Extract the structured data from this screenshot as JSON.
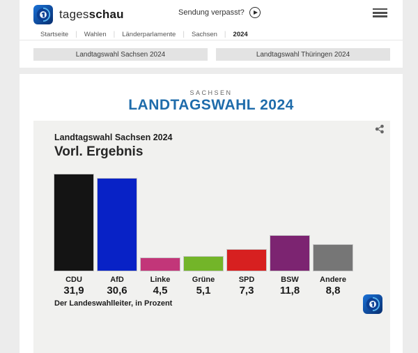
{
  "header": {
    "brand_regular": "tages",
    "brand_bold": "schau",
    "sendung_verpasst": "Sendung verpasst?",
    "breadcrumb": [
      {
        "label": "Startseite",
        "current": false
      },
      {
        "label": "Wahlen",
        "current": false
      },
      {
        "label": "Länderparlamente",
        "current": false
      },
      {
        "label": "Sachsen",
        "current": false
      },
      {
        "label": "2024",
        "current": true
      }
    ]
  },
  "tabs": [
    {
      "label": "Landtagswahl Sachsen 2024"
    },
    {
      "label": "Landtagswahl Thüringen 2024"
    }
  ],
  "main": {
    "kicker": "SACHSEN",
    "title": "LANDTAGSWAHL 2024"
  },
  "chart_data": {
    "type": "bar",
    "title": "Landtagswahl Sachsen 2024",
    "subtitle": "Vorl. Ergebnis",
    "categories": [
      "CDU",
      "AfD",
      "Linke",
      "Grüne",
      "SPD",
      "BSW",
      "Andere"
    ],
    "values": [
      31.9,
      30.6,
      4.5,
      5.1,
      7.3,
      11.8,
      8.8
    ],
    "value_labels": [
      "31,9",
      "30,6",
      "4,5",
      "5,1",
      "7,3",
      "11,8",
      "8,8"
    ],
    "bar_colors": [
      "#141414",
      "#0822c6",
      "#c23679",
      "#73b529",
      "#d72020",
      "#7c2471",
      "#767676"
    ],
    "unit": "Prozent",
    "source": "Der Landeswahlleiter, in Prozent",
    "ylim": [
      0,
      35
    ],
    "grid": false,
    "legend": false
  },
  "icons": {
    "brand_logo": "tagesschau-globe",
    "play": "play-circle",
    "menu": "hamburger",
    "share": "share-nodes",
    "footer_logo": "tagesschau-globe"
  },
  "colors": {
    "title_blue": "#1f6cab",
    "panel_bg": "#f1f1ef",
    "tab_bg": "#e3e3e3",
    "page_bg": "#ececec"
  }
}
